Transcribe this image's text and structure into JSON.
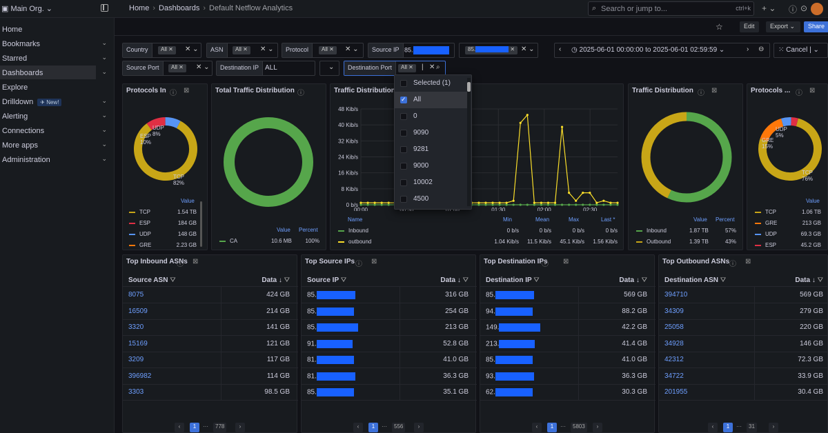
{
  "header": {
    "org": "Main Org.",
    "crumb_home": "Home",
    "crumb_dash": "Dashboards",
    "crumb_current": "Default Netflow Analytics",
    "search_placeholder": "Search or jump to...",
    "search_kbd": "ctrl+k"
  },
  "sidebar": {
    "items": [
      {
        "label": "Home"
      },
      {
        "label": "Bookmarks"
      },
      {
        "label": "Starred"
      },
      {
        "label": "Dashboards"
      },
      {
        "label": "Explore"
      },
      {
        "label": "Drilldown",
        "badge": "New!"
      },
      {
        "label": "Alerting"
      },
      {
        "label": "Connections"
      },
      {
        "label": "More apps"
      },
      {
        "label": "Administration"
      }
    ]
  },
  "toolbar": {
    "edit": "Edit",
    "export": "Export",
    "share": "Share",
    "time_range": "2025-06-01 00:00:00 to 2025-06-01 02:59:59",
    "cancel": "Cancel"
  },
  "vars": {
    "country": {
      "label": "Country",
      "value": "All"
    },
    "asn": {
      "label": "ASN",
      "value": "All"
    },
    "protocol": {
      "label": "Protocol",
      "value": "All"
    },
    "source_ip": {
      "label": "Source IP",
      "value": "85."
    },
    "ip_chip": "85.",
    "source_port": {
      "label": "Source Port",
      "value": "All"
    },
    "dest_ip": {
      "label": "Destination IP",
      "value": "ALL"
    },
    "dest_port": {
      "label": "Destination Port",
      "value": "All"
    }
  },
  "dropdown": {
    "items": [
      "Selected (1)",
      "All",
      "0",
      "9090",
      "9281",
      "9000",
      "10002",
      "4500"
    ]
  },
  "panels": {
    "protocols_in": {
      "title": "Protocols In",
      "col": "Value",
      "pie_labels": [
        {
          "name": "UDP",
          "pct": "8%"
        },
        {
          "name": "ESP",
          "pct": "10%"
        },
        {
          "name": "TCP",
          "pct": "82%"
        }
      ],
      "legend": [
        {
          "name": "TCP",
          "value": "1.54 TB",
          "color": "#c8a617"
        },
        {
          "name": "ESP",
          "value": "184 GB",
          "color": "#e02f44"
        },
        {
          "name": "UDP",
          "value": "148 GB",
          "color": "#5794f2"
        },
        {
          "name": "GRE",
          "value": "2.23 GB",
          "color": "#ff780a"
        }
      ]
    },
    "total_traffic": {
      "title": "Total Traffic Distribution",
      "col_value": "Value",
      "col_percent": "Percent",
      "legend": [
        {
          "name": "CA",
          "value": "10.6 MB",
          "percent": "100%",
          "color": "#56a64b"
        }
      ]
    },
    "traffic_dist_ts": {
      "title": "Traffic Distribution",
      "cols": {
        "name": "Name",
        "min": "Min",
        "mean": "Mean",
        "max": "Max",
        "last": "Last *"
      },
      "rows": [
        {
          "name": "Inbound",
          "min": "0 b/s",
          "mean": "0 b/s",
          "max": "0 b/s",
          "last": "0 b/s",
          "color": "#56a64b"
        },
        {
          "name": "outbound",
          "min": "1.04 Kib/s",
          "mean": "11.5 Kib/s",
          "max": "45.1 Kib/s",
          "last": "1.56 Kib/s",
          "color": "#fade2a"
        }
      ]
    },
    "traffic_dist": {
      "title": "Traffic Distribution",
      "col_value": "Value",
      "col_percent": "Percent",
      "legend": [
        {
          "name": "Inbound",
          "value": "1.87 TB",
          "percent": "57%",
          "color": "#56a64b"
        },
        {
          "name": "Outbound",
          "value": "1.39 TB",
          "percent": "43%",
          "color": "#c8a617"
        }
      ]
    },
    "protocols_out": {
      "title": "Protocols ...",
      "col": "Value",
      "pie_labels": [
        {
          "name": "UDP",
          "pct": "5%"
        },
        {
          "name": "GRE",
          "pct": "15%"
        },
        {
          "name": "TCP",
          "pct": "76%"
        }
      ],
      "legend": [
        {
          "name": "TCP",
          "value": "1.06 TB",
          "color": "#c8a617"
        },
        {
          "name": "GRE",
          "value": "213 GB",
          "color": "#ff780a"
        },
        {
          "name": "UDP",
          "value": "69.3 GB",
          "color": "#5794f2"
        },
        {
          "name": "ESP",
          "value": "45.2 GB",
          "color": "#e02f44"
        }
      ]
    }
  },
  "tables": [
    {
      "title": "Top Inbound ASNs",
      "col1": "Source ASN",
      "col2": "Data",
      "rows": [
        [
          "8075",
          "424 GB"
        ],
        [
          "16509",
          "214 GB"
        ],
        [
          "3320",
          "141 GB"
        ],
        [
          "15169",
          "121 GB"
        ],
        [
          "3209",
          "117 GB"
        ],
        [
          "396982",
          "114 GB"
        ],
        [
          "3303",
          "98.5 GB"
        ]
      ],
      "page": "1",
      "last": "778",
      "redacted": false
    },
    {
      "title": "Top Source IPs",
      "col1": "Source IP",
      "col2": "Data",
      "rows": [
        [
          "85.",
          "316 GB"
        ],
        [
          "85.",
          "254 GB"
        ],
        [
          "85.",
          "213 GB"
        ],
        [
          "91.",
          "52.8 GB"
        ],
        [
          "81.",
          "41.0 GB"
        ],
        [
          "81.",
          "36.3 GB"
        ],
        [
          "85.",
          "35.1 GB"
        ]
      ],
      "page": "1",
      "last": "556",
      "redacted": true
    },
    {
      "title": "Top Destination IPs",
      "col1": "Destination IP",
      "col2": "Data",
      "rows": [
        [
          "85.",
          "569 GB"
        ],
        [
          "94.",
          "88.2 GB"
        ],
        [
          "149.",
          "42.2 GB"
        ],
        [
          "213.",
          "41.4 GB"
        ],
        [
          "85.",
          "41.0 GB"
        ],
        [
          "93.",
          "36.3 GB"
        ],
        [
          "62.",
          "30.3 GB"
        ]
      ],
      "page": "1",
      "last": "5803",
      "redacted": true
    },
    {
      "title": "Top Outbound ASNs",
      "col1": "Destination ASN",
      "col2": "Data",
      "rows": [
        [
          "394710",
          "569 GB"
        ],
        [
          "34309",
          "279 GB"
        ],
        [
          "25058",
          "220 GB"
        ],
        [
          "34928",
          "146 GB"
        ],
        [
          "42312",
          "72.3 GB"
        ],
        [
          "34722",
          "33.9 GB"
        ],
        [
          "201955",
          "30.4 GB"
        ]
      ],
      "page": "1",
      "last": "31",
      "redacted": false
    }
  ],
  "chart_data": {
    "type": "line",
    "title": "Traffic Distribution",
    "xlabel": "",
    "ylabel": "",
    "y_ticks": [
      "48 Kib/s",
      "40 Kib/s",
      "32 Kib/s",
      "24 Kib/s",
      "16 Kib/s",
      "8 Kib/s",
      "0 b/s"
    ],
    "x_ticks": [
      "00:00",
      "00:30",
      "01:00",
      "01:30",
      "02:00",
      "02:30"
    ],
    "ylim": [
      0,
      48
    ],
    "series": [
      {
        "name": "Inbound",
        "values": [
          0,
          0,
          0,
          0,
          0,
          0,
          0,
          0,
          0,
          0,
          0,
          0,
          0,
          0,
          0,
          0,
          0,
          0,
          0,
          0,
          0,
          0,
          0,
          0,
          0,
          0,
          0,
          0,
          0,
          0,
          0,
          0,
          0,
          0,
          0,
          0,
          0,
          0
        ],
        "color": "#56a64b"
      },
      {
        "name": "outbound",
        "values": [
          1,
          1,
          1,
          1,
          1,
          1,
          1,
          1,
          1,
          1,
          1,
          1,
          1,
          1,
          1,
          1,
          1,
          1,
          1,
          1,
          1,
          1,
          2,
          41,
          45,
          1,
          1,
          1,
          1,
          39,
          6,
          2,
          6,
          6,
          1,
          2,
          1,
          1
        ],
        "color": "#fade2a"
      }
    ]
  }
}
